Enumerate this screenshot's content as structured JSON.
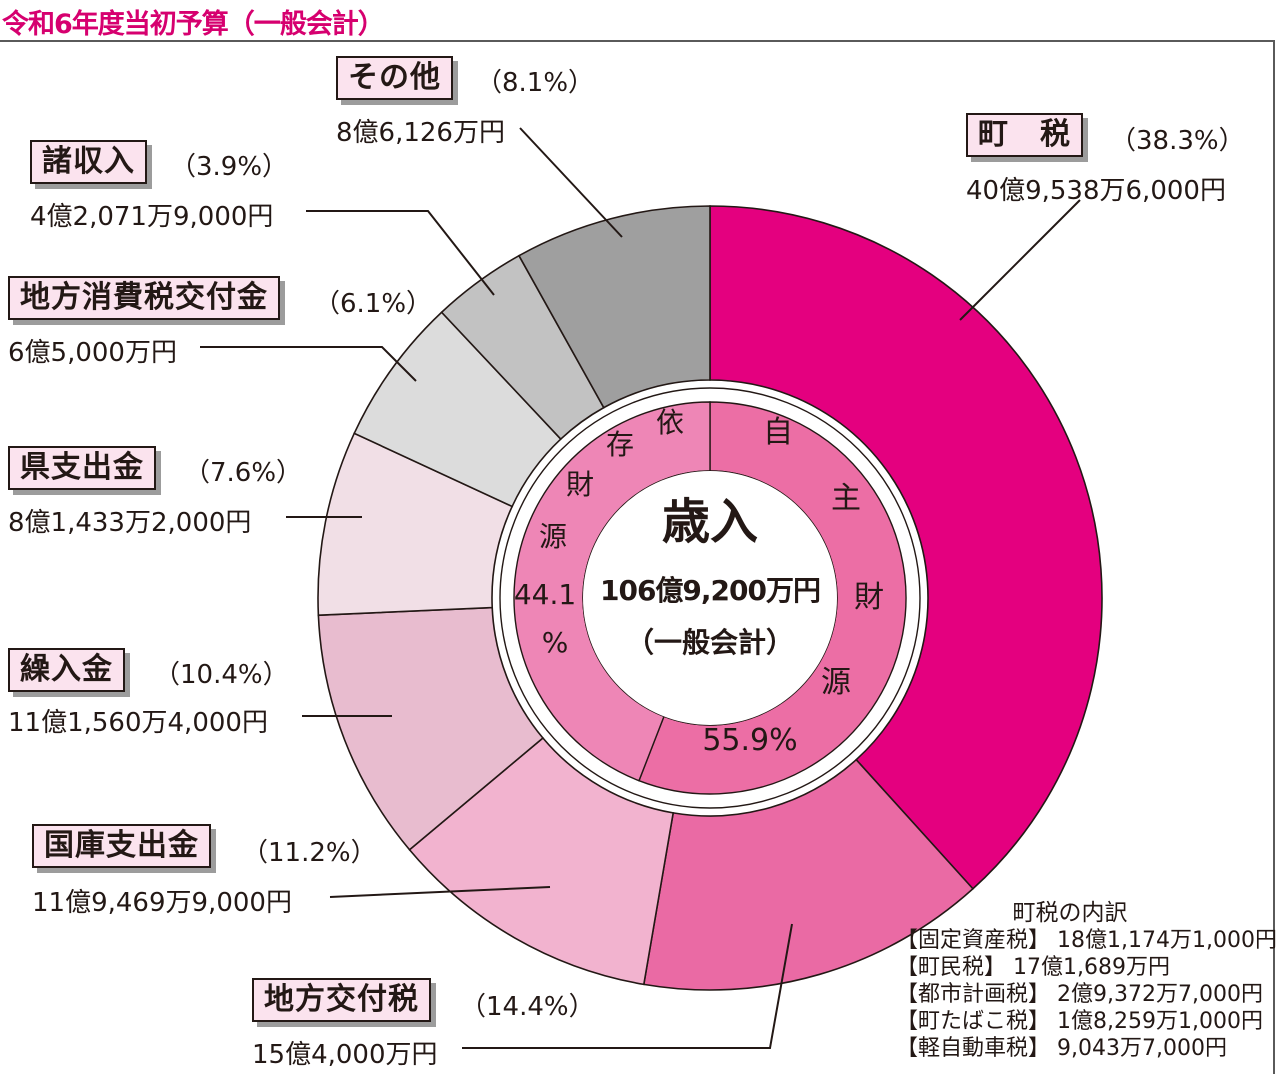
{
  "title": "令和6年度当初予算（一般会計）",
  "center": {
    "heading": "歳入",
    "total": "106億9,200万円",
    "note": "（一般会計）"
  },
  "inner_ring": {
    "own_chars": [
      "自",
      "主",
      "財",
      "源"
    ],
    "own_pct": "55.9%",
    "dep_chars": [
      "依",
      "存",
      "財",
      "源"
    ],
    "dep_pct_line1": "44.1",
    "dep_pct_line2": "%"
  },
  "categories": [
    {
      "label": "町　税",
      "pct": "（38.3%）",
      "amount": "40億9,538万6,000円"
    },
    {
      "label": "地方交付税",
      "pct": "（14.4%）",
      "amount": "15億4,000万円"
    },
    {
      "label": "国庫支出金",
      "pct": "（11.2%）",
      "amount": "11億9,469万9,000円"
    },
    {
      "label": "繰入金",
      "pct": "（10.4%）",
      "amount": "11億1,560万4,000円"
    },
    {
      "label": "県支出金",
      "pct": "（7.6%）",
      "amount": "8億1,433万2,000円"
    },
    {
      "label": "地方消費税交付金",
      "pct": "（6.1%）",
      "amount": "6億5,000万円"
    },
    {
      "label": "諸収入",
      "pct": "（3.9%）",
      "amount": "4億2,071万9,000円"
    },
    {
      "label": "その他",
      "pct": "（8.1%）",
      "amount": "8億6,126万円"
    }
  ],
  "breakdown": {
    "title": "町税の内訳",
    "items": [
      "【固定資産税】 18億1,174万1,000円",
      "【町民税】 17億1,689万円",
      "【都市計画税】 2億9,372万7,000円",
      "【町たばこ税】 1億8,259万1,000円",
      "【軽自動車税】 9,043万7,000円"
    ]
  },
  "chart_data": {
    "type": "pie",
    "title": "令和6年度当初予算（一般会計）",
    "outer": [
      {
        "name": "町税",
        "value": 38.3,
        "color": "#e4007f"
      },
      {
        "name": "地方交付税",
        "value": 14.4,
        "color": "#ea6aa4"
      },
      {
        "name": "国庫支出金",
        "value": 11.2,
        "color": "#f2b3cf"
      },
      {
        "name": "繰入金",
        "value": 10.4,
        "color": "#e8bccf"
      },
      {
        "name": "県支出金",
        "value": 7.6,
        "color": "#f1dfe6"
      },
      {
        "name": "地方消費税交付金",
        "value": 6.1,
        "color": "#dcdcdc"
      },
      {
        "name": "諸収入",
        "value": 3.9,
        "color": "#c2c2c2"
      },
      {
        "name": "その他",
        "value": 8.1,
        "color": "#9f9f9f"
      }
    ],
    "inner": [
      {
        "name": "自主財源",
        "value": 55.9,
        "color": "#ec6ea5"
      },
      {
        "name": "依存財源",
        "value": 44.1,
        "color": "#ee86b6"
      }
    ]
  }
}
